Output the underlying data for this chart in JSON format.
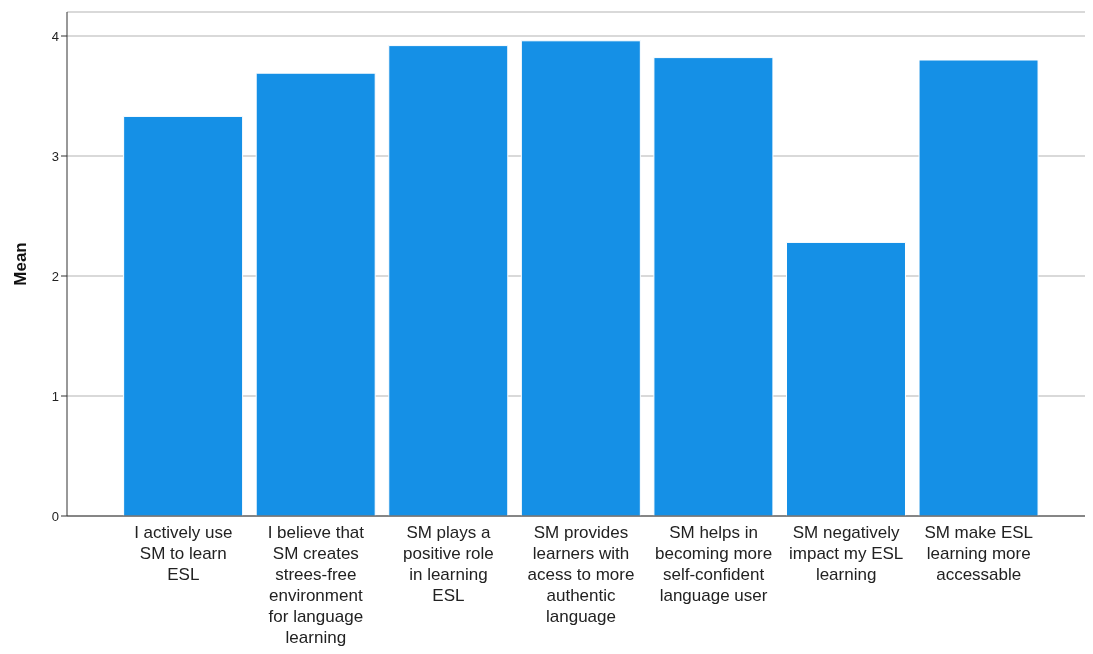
{
  "chart_data": {
    "type": "bar",
    "ylabel": "Mean",
    "categories": [
      "I actively use SM to learn ESL",
      "I believe that SM creates strees-free environment for language learning",
      "SM plays a positive role in learning ESL",
      "SM provides learners with acess to more authentic language",
      "SM helps in becoming more self-confident language user",
      "SM negatively impact my ESL learning",
      "SM make ESL learning more accessable"
    ],
    "values": [
      3.33,
      3.69,
      3.92,
      3.96,
      3.82,
      2.28,
      3.8
    ],
    "color": "#1590e6",
    "ylim": [
      0,
      4.2
    ],
    "yticks": [
      0,
      1,
      2,
      3,
      4
    ],
    "grid": "y"
  }
}
